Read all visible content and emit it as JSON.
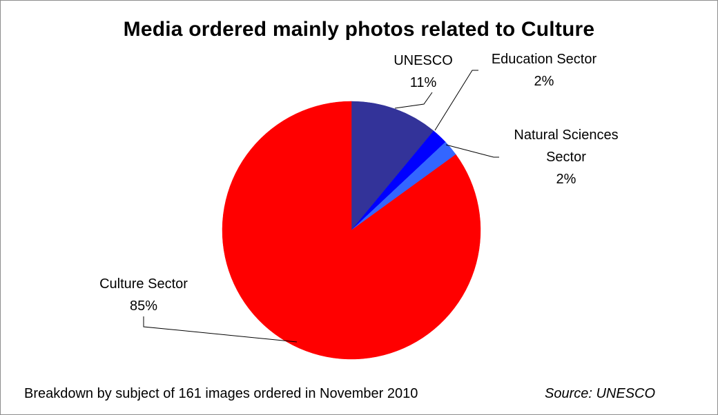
{
  "chart_data": {
    "type": "pie",
    "title": "Media ordered mainly photos related to Culture",
    "slices": [
      {
        "name": "UNESCO",
        "value": 11,
        "label": "11%",
        "color": "#333399"
      },
      {
        "name": "Education Sector",
        "value": 2,
        "label": "2%",
        "color": "#0000ff"
      },
      {
        "name": "Natural Sciences Sector",
        "value": 2,
        "label": "2%",
        "color": "#3366ff"
      },
      {
        "name": "Culture Sector",
        "value": 85,
        "label": "85%",
        "color": "#ff0000"
      }
    ],
    "start_angle_deg": 0,
    "direction": "clockwise",
    "data_labels": "category name and percentage, with leader lines"
  },
  "labels": {
    "unesco_name": "UNESCO",
    "unesco_pct": "11%",
    "education_name": "Education Sector",
    "education_pct": "2%",
    "natural_line1": "Natural Sciences",
    "natural_line2": "Sector",
    "natural_pct": "2%",
    "culture_name": "Culture Sector",
    "culture_pct": "85%"
  },
  "footer": {
    "note": "Breakdown by subject of 161 images ordered in November 2010",
    "source": "Source: UNESCO"
  },
  "colors": {
    "unesco": "#333399",
    "education": "#0000ff",
    "natural_sciences": "#3366ff",
    "culture": "#ff0000"
  }
}
